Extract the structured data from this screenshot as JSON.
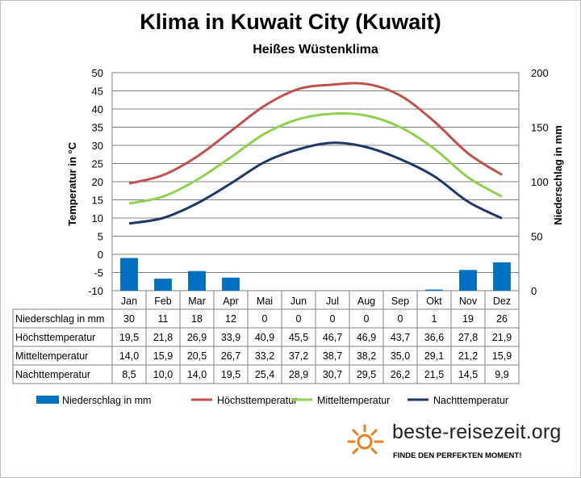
{
  "chart_data": {
    "type": "bar+line",
    "title": "Klima in Kuwait City (Kuwait)",
    "subtitle": "Heißes Wüstenklima",
    "ylabel_left": "Temperatur in °C",
    "ylabel_right": "Niederschlag in mm",
    "ylim_left": [
      -10,
      50
    ],
    "yticks_left": [
      "50",
      "45",
      "40",
      "35",
      "30",
      "25",
      "20",
      "15",
      "10",
      "5",
      "0",
      "-5",
      "-10"
    ],
    "ylim_right": [
      0,
      200
    ],
    "yticks_right": [
      "200",
      "150",
      "100",
      "50",
      "0"
    ],
    "categories": [
      "Jan",
      "Feb",
      "Mar",
      "Apr",
      "Mai",
      "Jun",
      "Jul",
      "Aug",
      "Sep",
      "Okt",
      "Nov",
      "Dez"
    ],
    "series": [
      {
        "name": "Niederschlag in mm",
        "type": "bar",
        "axis": "right",
        "color": "#0070c0",
        "values": [
          30,
          11,
          18,
          12,
          0,
          0,
          0,
          0,
          0,
          1,
          19,
          26
        ],
        "labels": [
          "30",
          "11",
          "18",
          "12",
          "0",
          "0",
          "0",
          "0",
          "0",
          "1",
          "19",
          "26"
        ]
      },
      {
        "name": "Höchsttemperatur",
        "type": "line",
        "axis": "left",
        "color": "#c0504d",
        "values": [
          19.5,
          21.8,
          26.9,
          33.9,
          40.9,
          45.5,
          46.7,
          46.9,
          43.7,
          36.6,
          27.8,
          21.9
        ],
        "labels": [
          "19,5",
          "21,8",
          "26,9",
          "33,9",
          "40,9",
          "45,5",
          "46,7",
          "46,9",
          "43,7",
          "36,6",
          "27,8",
          "21,9"
        ]
      },
      {
        "name": "Mitteltemperatur",
        "type": "line",
        "axis": "left",
        "color": "#92d050",
        "values": [
          14.0,
          15.9,
          20.5,
          26.7,
          33.2,
          37.2,
          38.7,
          38.2,
          35.0,
          29.1,
          21.2,
          15.9
        ],
        "labels": [
          "14,0",
          "15,9",
          "20,5",
          "26,7",
          "33,2",
          "37,2",
          "38,7",
          "38,2",
          "35,0",
          "29,1",
          "21,2",
          "15,9"
        ]
      },
      {
        "name": "Nachttemperatur",
        "type": "line",
        "axis": "left",
        "color": "#1f3864",
        "values": [
          8.5,
          10.0,
          14.0,
          19.5,
          25.4,
          28.9,
          30.7,
          29.5,
          26.2,
          21.5,
          14.5,
          9.9
        ],
        "labels": [
          "8,5",
          "10,0",
          "14,0",
          "19,5",
          "25,4",
          "28,9",
          "30,7",
          "29,5",
          "26,2",
          "21,5",
          "14,5",
          "9,9"
        ]
      }
    ],
    "grid": true,
    "legend_position": "bottom",
    "data_table": true
  },
  "branding": {
    "logo_text": "beste-reisezeit.org",
    "tagline": "FINDE DEN PERFEKTEN MOMENT!"
  }
}
